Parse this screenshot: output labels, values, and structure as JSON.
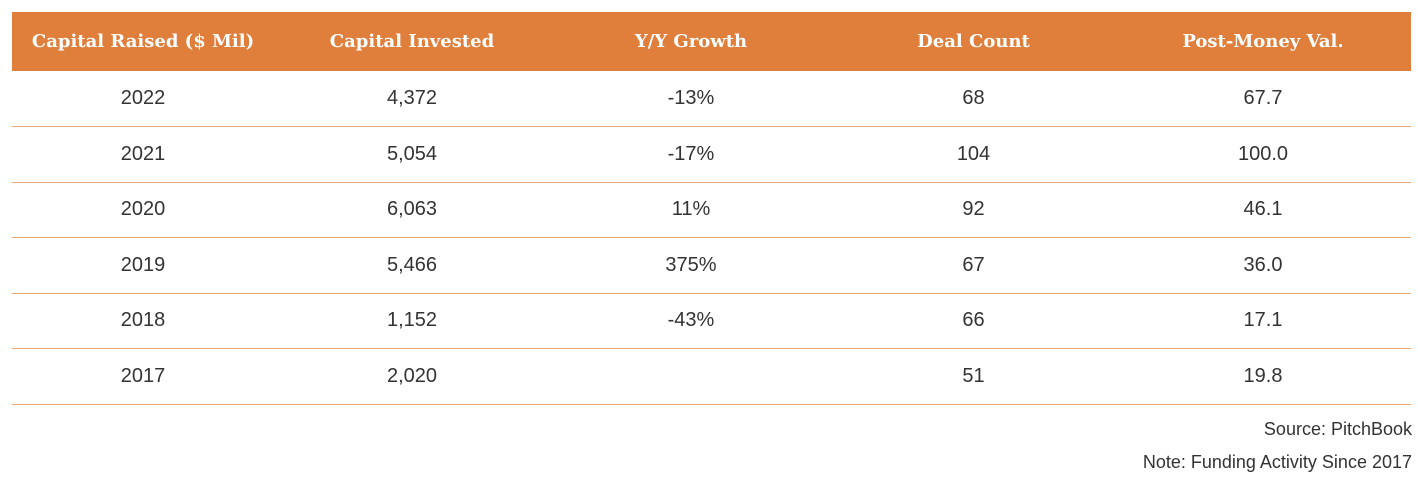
{
  "chart_data": {
    "type": "table",
    "columns": [
      "Capital Raised ($ Mil)",
      "Capital Invested",
      "Y/Y Growth",
      "Deal Count",
      "Post-Money Val."
    ],
    "rows": [
      [
        "2022",
        "4,372",
        "-13%",
        "68",
        "67.7"
      ],
      [
        "2021",
        "5,054",
        "-17%",
        "104",
        "100.0"
      ],
      [
        "2020",
        "6,063",
        "11%",
        "92",
        "46.1"
      ],
      [
        "2019",
        "5,466",
        "375%",
        "67",
        "36.0"
      ],
      [
        "2018",
        "1,152",
        "-43%",
        "66",
        "17.1"
      ],
      [
        "2017",
        "2,020",
        "",
        "51",
        "19.8"
      ]
    ]
  },
  "footer": {
    "source": "Source: PitchBook",
    "note": "Note: Funding Activity Since 2017"
  },
  "colors": {
    "header_bg": "#e07e3c",
    "row_divider": "#e8a877"
  }
}
